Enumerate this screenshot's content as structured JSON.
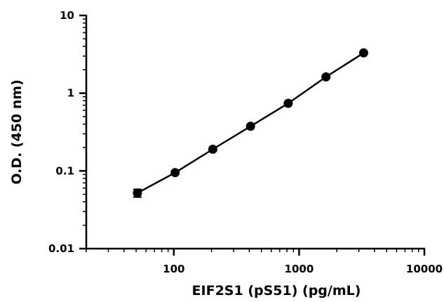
{
  "chart_data": {
    "type": "scatter",
    "xlabel": "EIF2S1 (pS51) (pg/mL)",
    "ylabel": "O.D. (450 nm)",
    "x_scale": "log",
    "y_scale": "log",
    "xlim": [
      20,
      10000
    ],
    "ylim": [
      0.01,
      10
    ],
    "x_ticks": [
      100,
      1000,
      10000
    ],
    "x_tick_labels": [
      "100",
      "1000",
      "10000"
    ],
    "y_ticks": [
      0.01,
      0.1,
      1,
      10
    ],
    "y_tick_labels": [
      "0.01",
      "0.1",
      "1",
      "10"
    ],
    "grid": false,
    "series": [
      {
        "x": [
          51.2,
          102.4,
          204.8,
          409.6,
          819.2,
          1638.4,
          3276.8
        ],
        "y": [
          0.052,
          0.095,
          0.19,
          0.375,
          0.74,
          1.62,
          3.3
        ],
        "y_error": [
          0.006,
          0.003,
          0.005,
          0.008,
          0.02,
          0.03,
          0.05
        ],
        "fit_line": true,
        "color": "#000000"
      }
    ]
  }
}
